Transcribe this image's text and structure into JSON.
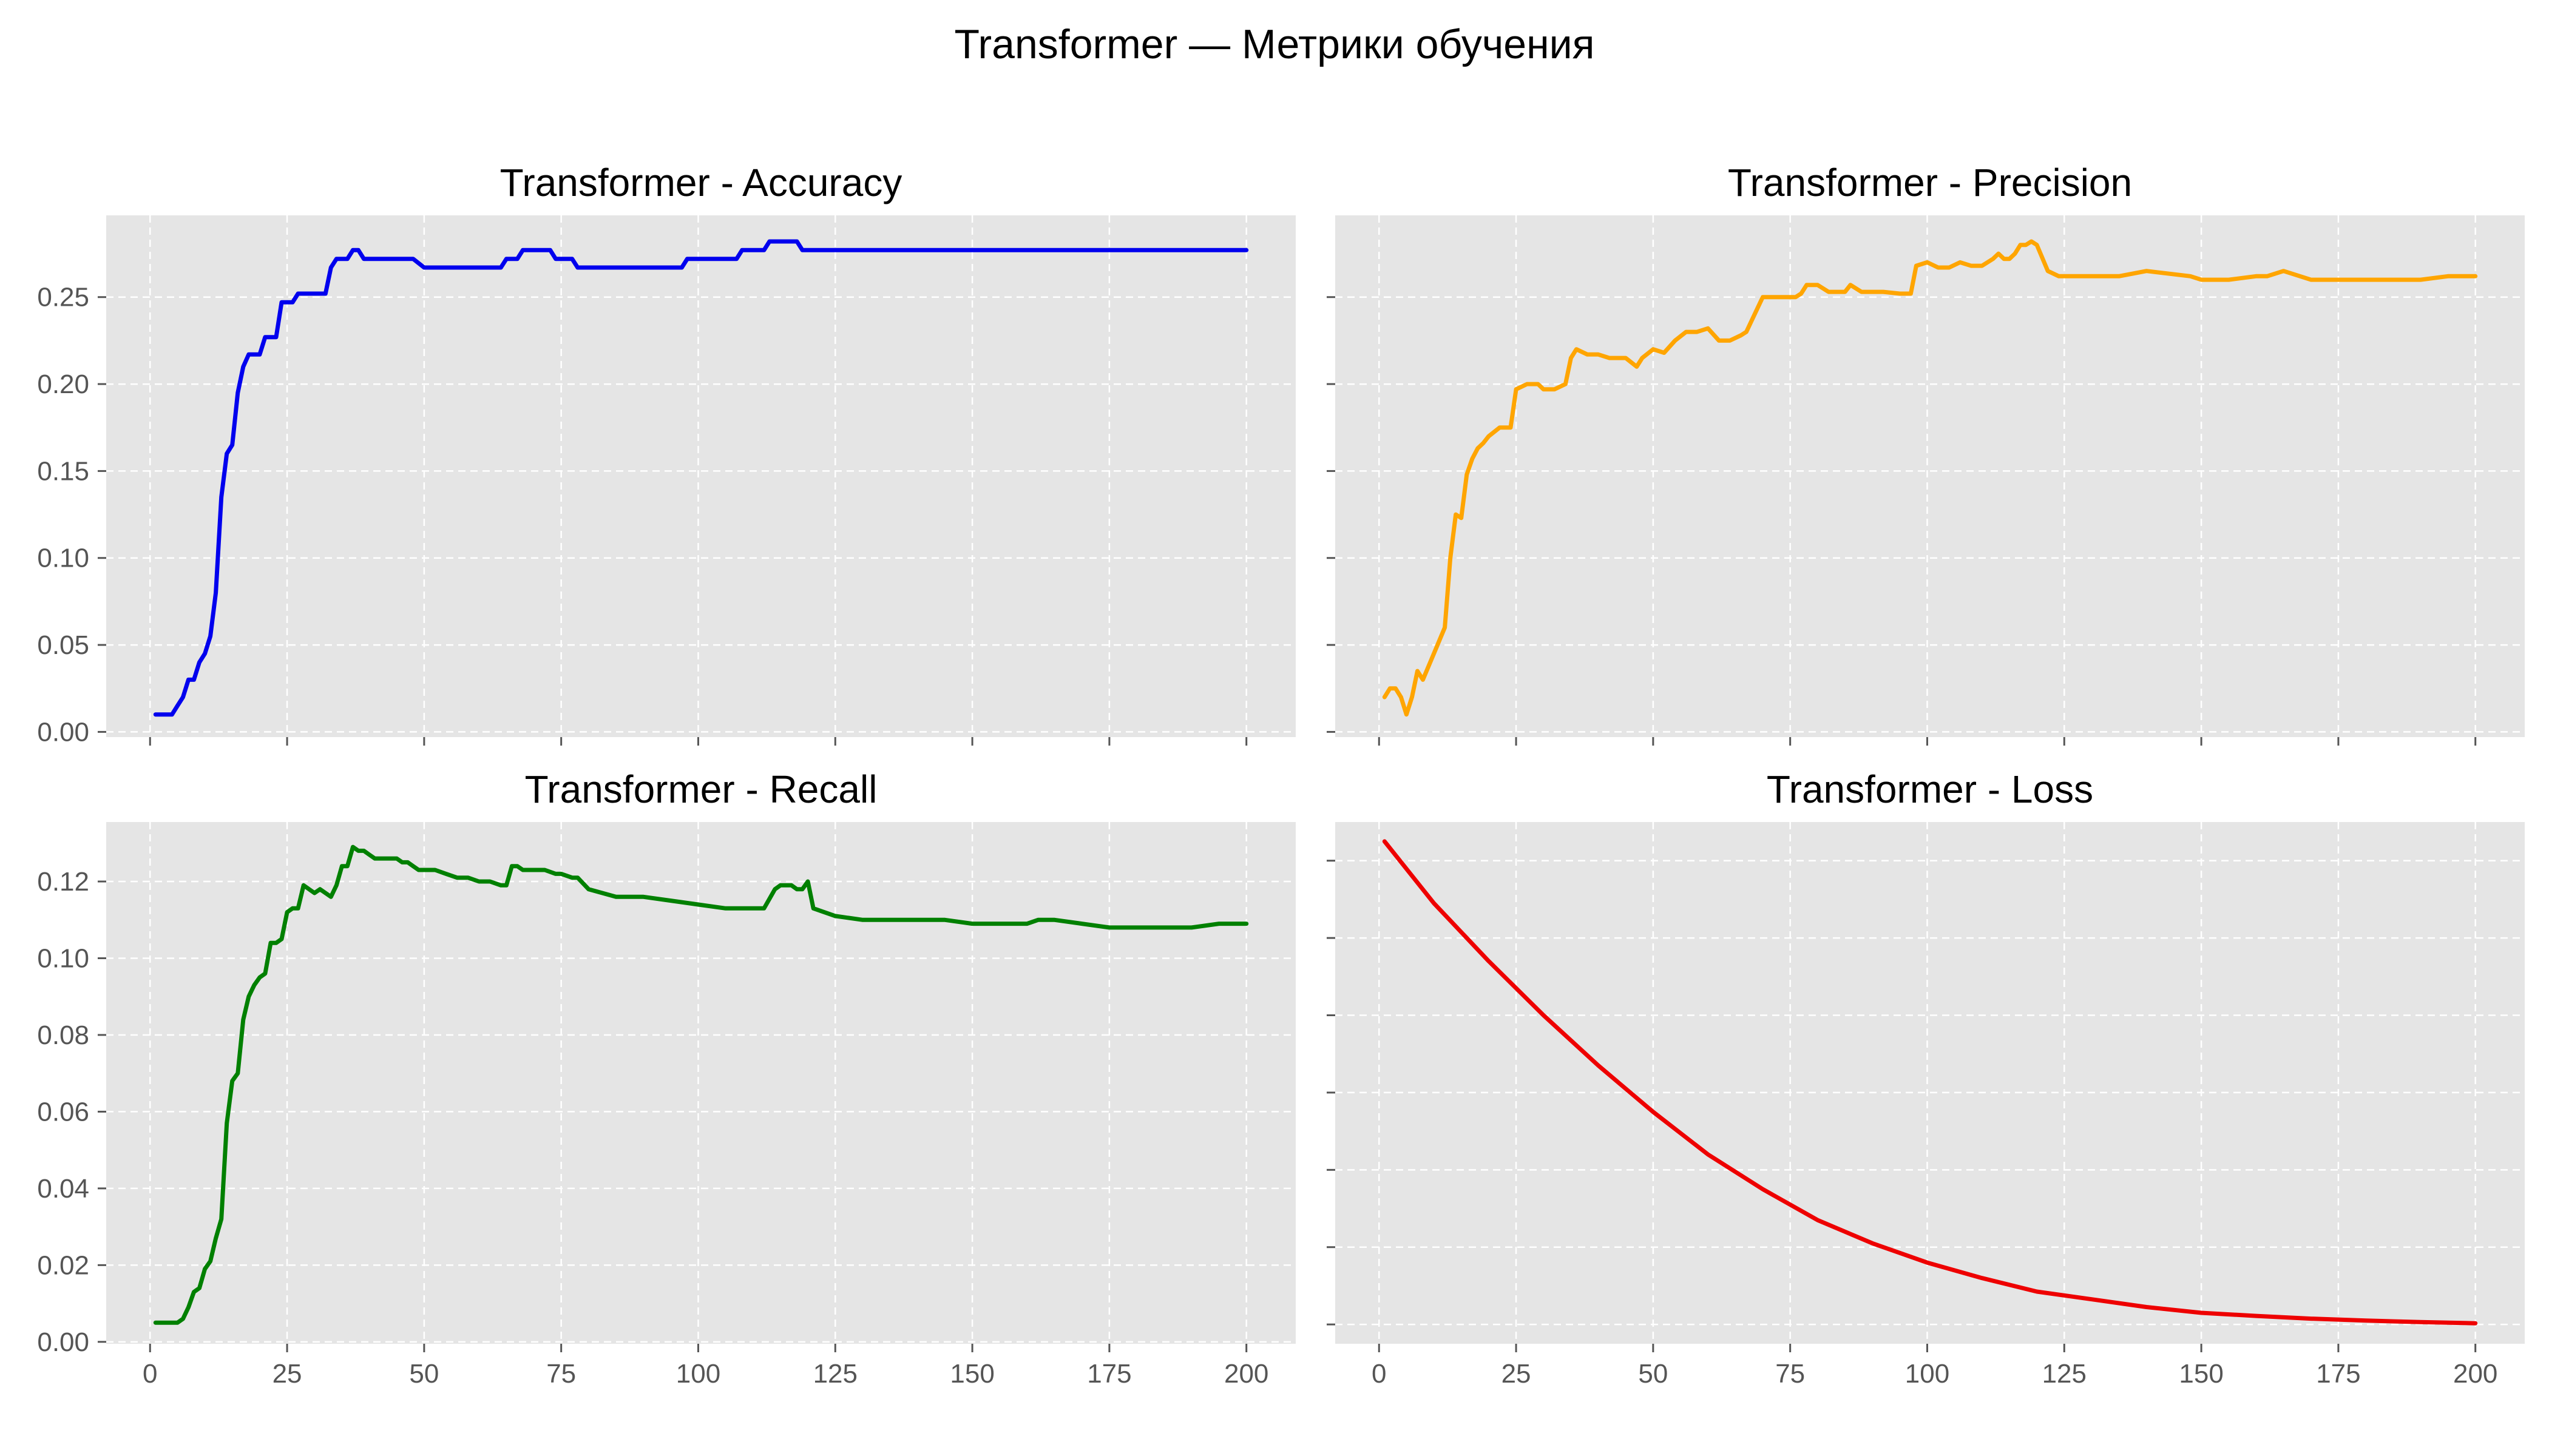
{
  "suptitle": "Transformer — Метрики обучения",
  "chart_data": [
    {
      "type": "line",
      "title": "Transformer - Accuracy",
      "color": "#0000ee",
      "xlim": [
        -8,
        209
      ],
      "ylim": [
        -0.003,
        0.297
      ],
      "xticks": [
        0,
        25,
        50,
        75,
        100,
        125,
        150,
        175,
        200
      ],
      "yticks": [
        0.0,
        0.05,
        0.1,
        0.15,
        0.2,
        0.25
      ],
      "ytick_labels": [
        "0.00",
        "0.05",
        "0.10",
        "0.15",
        "0.20",
        "0.25"
      ],
      "show_xtick_labels": false,
      "show_ytick_labels": true,
      "grid": true,
      "series": [
        {
          "x": [
            1,
            2,
            3,
            4,
            5,
            6,
            7,
            8,
            9,
            10,
            11,
            12,
            13,
            14,
            15,
            16,
            17,
            18,
            19,
            20,
            21,
            22,
            23,
            24,
            25,
            26,
            27,
            28,
            29,
            30,
            31,
            32,
            33,
            34,
            35,
            36,
            37,
            38,
            39,
            40,
            45,
            48,
            50,
            55,
            60,
            62,
            64,
            65,
            66,
            67,
            68,
            70,
            72,
            73,
            74,
            75,
            77,
            78,
            80,
            85,
            90,
            95,
            97,
            98,
            100,
            105,
            107,
            108,
            110,
            112,
            113,
            115,
            117,
            118,
            119,
            120,
            125,
            150,
            175,
            200
          ],
          "y": [
            0.01,
            0.01,
            0.01,
            0.01,
            0.015,
            0.02,
            0.03,
            0.03,
            0.04,
            0.045,
            0.055,
            0.08,
            0.135,
            0.16,
            0.165,
            0.195,
            0.21,
            0.217,
            0.217,
            0.217,
            0.227,
            0.227,
            0.227,
            0.247,
            0.247,
            0.247,
            0.252,
            0.252,
            0.252,
            0.252,
            0.252,
            0.252,
            0.267,
            0.272,
            0.272,
            0.272,
            0.277,
            0.277,
            0.272,
            0.272,
            0.272,
            0.272,
            0.267,
            0.267,
            0.267,
            0.267,
            0.267,
            0.272,
            0.272,
            0.272,
            0.277,
            0.277,
            0.277,
            0.277,
            0.272,
            0.272,
            0.272,
            0.267,
            0.267,
            0.267,
            0.267,
            0.267,
            0.267,
            0.272,
            0.272,
            0.272,
            0.272,
            0.277,
            0.277,
            0.277,
            0.282,
            0.282,
            0.282,
            0.282,
            0.277,
            0.277,
            0.277,
            0.277,
            0.277,
            0.277
          ]
        }
      ]
    },
    {
      "type": "line",
      "title": "Transformer - Precision",
      "color": "#ffa500",
      "xlim": [
        -8,
        209
      ],
      "ylim": [
        -0.003,
        0.297
      ],
      "xticks": [
        0,
        25,
        50,
        75,
        100,
        125,
        150,
        175,
        200
      ],
      "yticks": [
        0.0,
        0.05,
        0.1,
        0.15,
        0.2,
        0.25
      ],
      "ytick_labels": [
        "0.00",
        "0.05",
        "0.10",
        "0.15",
        "0.20",
        "0.25"
      ],
      "show_xtick_labels": false,
      "show_ytick_labels": false,
      "grid": true,
      "series": [
        {
          "x": [
            1,
            2,
            3,
            4,
            5,
            6,
            7,
            8,
            10,
            12,
            13,
            14,
            15,
            16,
            17,
            18,
            19,
            20,
            22,
            24,
            25,
            27,
            28,
            29,
            30,
            32,
            34,
            35,
            36,
            38,
            40,
            42,
            44,
            45,
            47,
            48,
            50,
            52,
            54,
            56,
            58,
            60,
            62,
            64,
            66,
            67,
            70,
            72,
            74,
            75,
            76,
            77,
            78,
            80,
            82,
            85,
            86,
            88,
            90,
            92,
            95,
            97,
            98,
            100,
            102,
            104,
            106,
            108,
            110,
            112,
            113,
            114,
            115,
            116,
            117,
            118,
            119,
            120,
            122,
            124,
            126,
            130,
            135,
            140,
            148,
            150,
            155,
            160,
            162,
            165,
            170,
            175,
            180,
            185,
            190,
            195,
            200
          ],
          "y": [
            0.02,
            0.025,
            0.025,
            0.02,
            0.01,
            0.02,
            0.035,
            0.03,
            0.045,
            0.06,
            0.1,
            0.125,
            0.123,
            0.148,
            0.157,
            0.163,
            0.166,
            0.17,
            0.175,
            0.175,
            0.197,
            0.2,
            0.2,
            0.2,
            0.197,
            0.197,
            0.2,
            0.215,
            0.22,
            0.217,
            0.217,
            0.215,
            0.215,
            0.215,
            0.21,
            0.215,
            0.22,
            0.218,
            0.225,
            0.23,
            0.23,
            0.232,
            0.225,
            0.225,
            0.228,
            0.23,
            0.25,
            0.25,
            0.25,
            0.25,
            0.25,
            0.252,
            0.257,
            0.257,
            0.253,
            0.253,
            0.257,
            0.253,
            0.253,
            0.253,
            0.252,
            0.252,
            0.268,
            0.27,
            0.267,
            0.267,
            0.27,
            0.268,
            0.268,
            0.272,
            0.275,
            0.272,
            0.272,
            0.275,
            0.28,
            0.28,
            0.282,
            0.28,
            0.265,
            0.262,
            0.262,
            0.262,
            0.262,
            0.265,
            0.262,
            0.26,
            0.26,
            0.262,
            0.262,
            0.265,
            0.26,
            0.26,
            0.26,
            0.26,
            0.26,
            0.262,
            0.262
          ]
        }
      ]
    },
    {
      "type": "line",
      "title": "Transformer - Recall",
      "color": "#008000",
      "xlim": [
        -8,
        209
      ],
      "ylim": [
        -0.0005,
        0.1355
      ],
      "xticks": [
        0,
        25,
        50,
        75,
        100,
        125,
        150,
        175,
        200
      ],
      "xtick_labels": [
        "0",
        "25",
        "50",
        "75",
        "100",
        "125",
        "150",
        "175",
        "200"
      ],
      "yticks": [
        0.0,
        0.02,
        0.04,
        0.06,
        0.08,
        0.1,
        0.12
      ],
      "ytick_labels": [
        "0.00",
        "0.02",
        "0.04",
        "0.06",
        "0.08",
        "0.10",
        "0.12"
      ],
      "show_xtick_labels": true,
      "show_ytick_labels": true,
      "grid": true,
      "series": [
        {
          "x": [
            1,
            2,
            3,
            4,
            5,
            6,
            7,
            8,
            9,
            10,
            11,
            12,
            13,
            14,
            15,
            16,
            17,
            18,
            19,
            20,
            21,
            22,
            23,
            24,
            25,
            26,
            27,
            28,
            29,
            30,
            31,
            32,
            33,
            34,
            35,
            36,
            37,
            38,
            39,
            40,
            41,
            42,
            43,
            44,
            45,
            46,
            47,
            48,
            49,
            50,
            52,
            54,
            56,
            58,
            60,
            62,
            64,
            65,
            66,
            67,
            68,
            70,
            72,
            74,
            75,
            77,
            78,
            80,
            85,
            90,
            95,
            100,
            105,
            110,
            112,
            114,
            115,
            116,
            117,
            118,
            119,
            120,
            121,
            125,
            130,
            135,
            140,
            145,
            150,
            155,
            160,
            162,
            165,
            170,
            175,
            180,
            185,
            190,
            195,
            200
          ],
          "y": [
            0.005,
            0.005,
            0.005,
            0.005,
            0.005,
            0.006,
            0.009,
            0.013,
            0.014,
            0.019,
            0.021,
            0.027,
            0.032,
            0.057,
            0.068,
            0.07,
            0.084,
            0.09,
            0.093,
            0.095,
            0.096,
            0.104,
            0.104,
            0.105,
            0.112,
            0.113,
            0.113,
            0.119,
            0.118,
            0.117,
            0.118,
            0.117,
            0.116,
            0.119,
            0.124,
            0.124,
            0.129,
            0.128,
            0.128,
            0.127,
            0.126,
            0.126,
            0.126,
            0.126,
            0.126,
            0.125,
            0.125,
            0.124,
            0.123,
            0.123,
            0.123,
            0.122,
            0.121,
            0.121,
            0.12,
            0.12,
            0.119,
            0.119,
            0.124,
            0.124,
            0.123,
            0.123,
            0.123,
            0.122,
            0.122,
            0.121,
            0.121,
            0.118,
            0.116,
            0.116,
            0.115,
            0.114,
            0.113,
            0.113,
            0.113,
            0.118,
            0.119,
            0.119,
            0.119,
            0.118,
            0.118,
            0.12,
            0.113,
            0.111,
            0.11,
            0.11,
            0.11,
            0.11,
            0.109,
            0.109,
            0.109,
            0.11,
            0.11,
            0.109,
            0.108,
            0.108,
            0.108,
            0.108,
            0.109,
            0.109
          ]
        }
      ]
    },
    {
      "type": "line",
      "title": "Transformer - Loss",
      "color": "#ee0000",
      "xlim": [
        -8,
        209
      ],
      "ylim": [
        0,
        0.135
      ],
      "xticks": [
        0,
        25,
        50,
        75,
        100,
        125,
        150,
        175,
        200
      ],
      "xtick_labels": [
        "0",
        "25",
        "50",
        "75",
        "100",
        "125",
        "150",
        "175",
        "200"
      ],
      "yticks": [
        0.005,
        0.025,
        0.045,
        0.065,
        0.085,
        0.105,
        0.125
      ],
      "show_xtick_labels": true,
      "show_ytick_labels": false,
      "grid": true,
      "series": [
        {
          "x": [
            1,
            10,
            20,
            30,
            40,
            50,
            60,
            70,
            80,
            90,
            100,
            110,
            120,
            130,
            140,
            150,
            160,
            170,
            180,
            190,
            200
          ],
          "y": [
            0.13,
            0.114,
            0.099,
            0.085,
            0.072,
            0.06,
            0.049,
            0.04,
            0.032,
            0.026,
            0.021,
            0.017,
            0.0135,
            0.0115,
            0.0095,
            0.008,
            0.0072,
            0.0065,
            0.006,
            0.0056,
            0.0053
          ]
        }
      ]
    }
  ]
}
